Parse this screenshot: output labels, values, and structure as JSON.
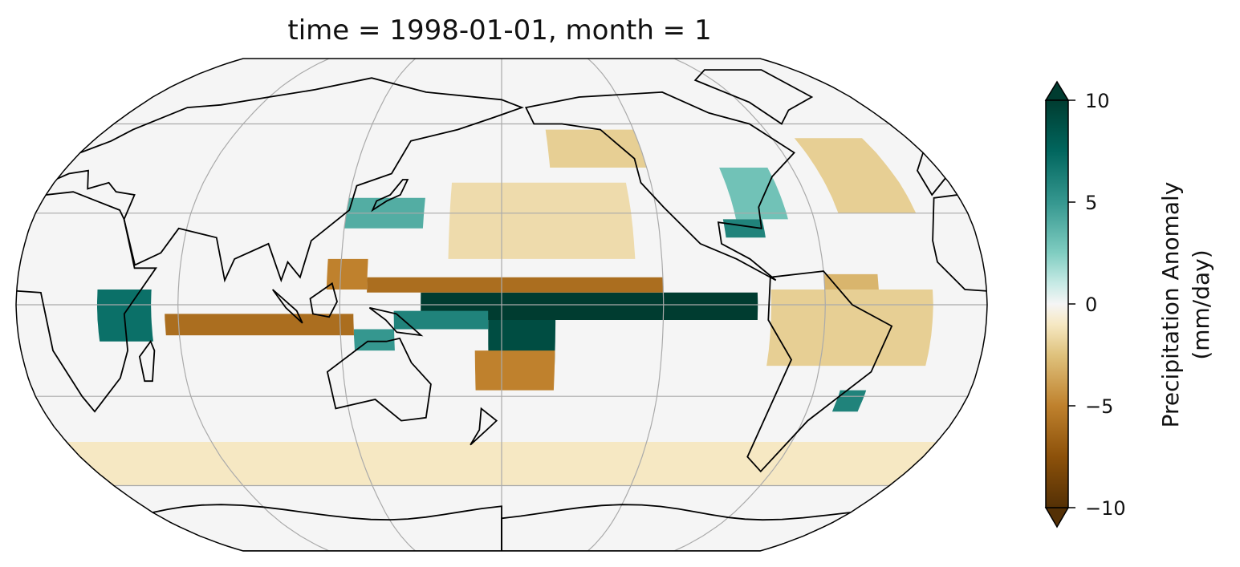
{
  "title": "time = 1998-01-01, month = 1",
  "colorbar": {
    "label_line1": "Precipitation Anomaly",
    "label_line2": "(mm/day)",
    "ticks": [
      "10",
      "5",
      "0",
      "−5",
      "−10"
    ],
    "tick_values": [
      10,
      5,
      0,
      -5,
      -10
    ],
    "range": [
      -10,
      10
    ],
    "extend": "both",
    "colormap": "BrBG",
    "stops": [
      [
        "-10",
        "#543005"
      ],
      [
        "-7.5",
        "#8c510a"
      ],
      [
        "-5",
        "#bf812d"
      ],
      [
        "-2.5",
        "#dfc27d"
      ],
      [
        "-1",
        "#f6e8c3"
      ],
      [
        "0",
        "#f5f5f5"
      ],
      [
        "1",
        "#c7eae5"
      ],
      [
        "2.5",
        "#80cdc1"
      ],
      [
        "5",
        "#35978f"
      ],
      [
        "7.5",
        "#01665e"
      ],
      [
        "10",
        "#003c30"
      ]
    ]
  },
  "chart_data": {
    "type": "heatmap",
    "projection": "Robinson",
    "central_longitude": 180,
    "title": "time = 1998-01-01, month = 1",
    "variable": "Precipitation Anomaly (mm/day)",
    "graticule": {
      "lon_step": 60,
      "lat_step": 30
    },
    "anomaly_regions": [
      {
        "lon": [
          150,
          275
        ],
        "lat": [
          -5,
          4
        ],
        "value": 10
      },
      {
        "lon": [
          175,
          200
        ],
        "lat": [
          -20,
          -5
        ],
        "value": 9
      },
      {
        "lon": [
          140,
          175
        ],
        "lat": [
          -8,
          -2
        ],
        "value": 6
      },
      {
        "lon": [
          125,
          140
        ],
        "lat": [
          -15,
          -8
        ],
        "value": 5
      },
      {
        "lon": [
          30,
          50
        ],
        "lat": [
          -12,
          5
        ],
        "value": 7
      },
      {
        "lon": [
          130,
          240
        ],
        "lat": [
          4,
          9
        ],
        "value": -6
      },
      {
        "lon": [
          55,
          125
        ],
        "lat": [
          -10,
          -3
        ],
        "value": -6
      },
      {
        "lon": [
          115,
          130
        ],
        "lat": [
          5,
          15
        ],
        "value": -5
      },
      {
        "lon": [
          170,
          200
        ],
        "lat": [
          -28,
          -15
        ],
        "value": -5
      },
      {
        "lon": [
          280,
          340
        ],
        "lat": [
          -20,
          5
        ],
        "value": -2
      },
      {
        "lon": [
          300,
          320
        ],
        "lat": [
          5,
          10
        ],
        "value": -3
      },
      {
        "lon": [
          120,
          150
        ],
        "lat": [
          25,
          35
        ],
        "value": 4
      },
      {
        "lon": [
          160,
          230
        ],
        "lat": [
          15,
          40
        ],
        "value": -1.5
      },
      {
        "lon": [
          200,
          240
        ],
        "lat": [
          45,
          58
        ],
        "value": -2
      },
      {
        "lon": [
          270,
          290
        ],
        "lat": [
          28,
          45
        ],
        "value": 3
      },
      {
        "lon": [
          265,
          280
        ],
        "lat": [
          22,
          28
        ],
        "value": 6
      },
      {
        "lon": [
          310,
          340
        ],
        "lat": [
          30,
          55
        ],
        "value": -2
      },
      {
        "lon": [
          0,
          360
        ],
        "lat": [
          -60,
          -45
        ],
        "value": -1
      },
      {
        "lon": [
          310,
          320
        ],
        "lat": [
          -35,
          -28
        ],
        "value": 6
      }
    ]
  }
}
